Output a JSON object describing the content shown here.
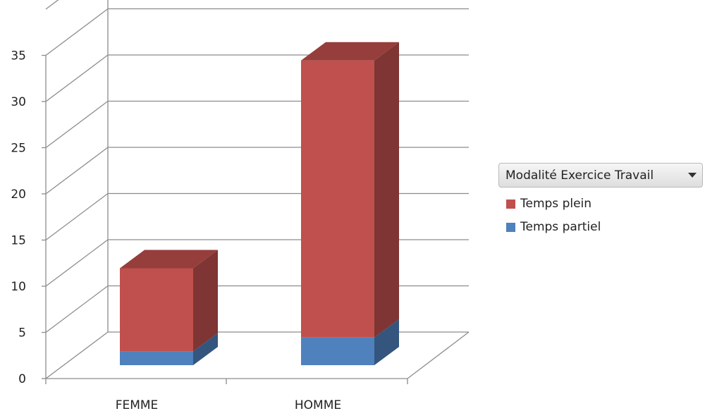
{
  "chart_data": {
    "type": "bar",
    "stacked": true,
    "view": "3d",
    "categories": [
      "FEMME",
      "HOMME"
    ],
    "series": [
      {
        "name": "Temps partiel",
        "values": [
          1.5,
          3
        ],
        "color": "#4f81bd"
      },
      {
        "name": "Temps plein",
        "values": [
          9,
          30
        ],
        "color": "#c0504d"
      }
    ],
    "yticks": [
      0,
      5,
      10,
      15,
      20,
      25,
      30,
      35
    ],
    "ylim": [
      0,
      40
    ],
    "grid": true,
    "legend_position": "right"
  },
  "legend": {
    "title": "Modalité Exercice Travail",
    "icon": "dropdown-arrow-icon",
    "items": [
      {
        "label": "Temps plein",
        "color": "#c0504d"
      },
      {
        "label": "Temps partiel",
        "color": "#4f81bd"
      }
    ]
  }
}
